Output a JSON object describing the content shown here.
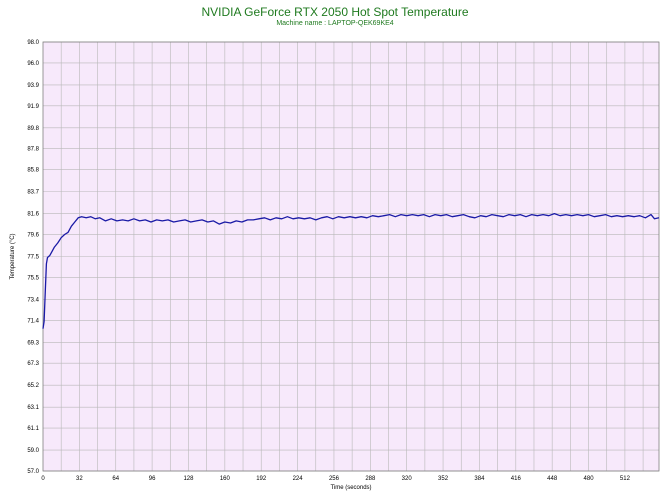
{
  "chart_data": {
    "type": "line",
    "title": "NVIDIA GeForce RTX 2050 Hot Spot Temperature",
    "subtitle": "Machine name : LAPTOP-QEK69KE4",
    "xlabel": "Time (seconds)",
    "ylabel": "Temperature (°C)",
    "xlim": [
      0,
      542
    ],
    "ylim": [
      57.0,
      98.0
    ],
    "x_ticks": [
      0,
      32,
      64,
      96,
      128,
      160,
      192,
      224,
      256,
      288,
      320,
      352,
      384,
      416,
      448,
      480,
      512
    ],
    "y_ticks": [
      57.0,
      59.0,
      61.1,
      63.1,
      65.2,
      67.3,
      69.3,
      71.4,
      73.4,
      75.5,
      77.5,
      79.6,
      81.6,
      83.7,
      85.8,
      87.8,
      89.8,
      91.9,
      93.9,
      96.0,
      98.0
    ],
    "grid": true,
    "background_color": "#f7e9fb",
    "grid_color": "#b8b8b8",
    "series": [
      {
        "color": "#1a1aa6",
        "points": [
          [
            0,
            70.6
          ],
          [
            1,
            71.3
          ],
          [
            2,
            74.2
          ],
          [
            3,
            76.8
          ],
          [
            4,
            77.4
          ],
          [
            6,
            77.6
          ],
          [
            8,
            78.0
          ],
          [
            10,
            78.4
          ],
          [
            13,
            78.8
          ],
          [
            16,
            79.3
          ],
          [
            19,
            79.6
          ],
          [
            22,
            79.8
          ],
          [
            25,
            80.4
          ],
          [
            28,
            80.8
          ],
          [
            31,
            81.2
          ],
          [
            34,
            81.3
          ],
          [
            38,
            81.2
          ],
          [
            42,
            81.3
          ],
          [
            46,
            81.1
          ],
          [
            50,
            81.2
          ],
          [
            55,
            80.9
          ],
          [
            60,
            81.1
          ],
          [
            65,
            80.9
          ],
          [
            70,
            81.0
          ],
          [
            75,
            80.9
          ],
          [
            80,
            81.1
          ],
          [
            85,
            80.9
          ],
          [
            90,
            81.0
          ],
          [
            95,
            80.8
          ],
          [
            100,
            81.0
          ],
          [
            105,
            80.9
          ],
          [
            110,
            81.0
          ],
          [
            115,
            80.8
          ],
          [
            120,
            80.9
          ],
          [
            125,
            81.0
          ],
          [
            130,
            80.8
          ],
          [
            135,
            80.9
          ],
          [
            140,
            81.0
          ],
          [
            145,
            80.8
          ],
          [
            150,
            80.9
          ],
          [
            155,
            80.6
          ],
          [
            160,
            80.8
          ],
          [
            165,
            80.7
          ],
          [
            170,
            80.9
          ],
          [
            175,
            80.8
          ],
          [
            180,
            81.0
          ],
          [
            185,
            81.0
          ],
          [
            190,
            81.1
          ],
          [
            195,
            81.2
          ],
          [
            200,
            81.0
          ],
          [
            205,
            81.2
          ],
          [
            210,
            81.1
          ],
          [
            215,
            81.3
          ],
          [
            220,
            81.1
          ],
          [
            225,
            81.2
          ],
          [
            230,
            81.1
          ],
          [
            235,
            81.2
          ],
          [
            240,
            81.0
          ],
          [
            245,
            81.2
          ],
          [
            250,
            81.3
          ],
          [
            255,
            81.1
          ],
          [
            260,
            81.3
          ],
          [
            265,
            81.2
          ],
          [
            270,
            81.3
          ],
          [
            275,
            81.2
          ],
          [
            280,
            81.3
          ],
          [
            285,
            81.2
          ],
          [
            290,
            81.4
          ],
          [
            295,
            81.3
          ],
          [
            300,
            81.4
          ],
          [
            305,
            81.5
          ],
          [
            310,
            81.3
          ],
          [
            315,
            81.5
          ],
          [
            320,
            81.4
          ],
          [
            325,
            81.5
          ],
          [
            330,
            81.4
          ],
          [
            335,
            81.5
          ],
          [
            340,
            81.3
          ],
          [
            345,
            81.5
          ],
          [
            350,
            81.4
          ],
          [
            355,
            81.5
          ],
          [
            360,
            81.3
          ],
          [
            365,
            81.4
          ],
          [
            370,
            81.5
          ],
          [
            375,
            81.3
          ],
          [
            380,
            81.2
          ],
          [
            385,
            81.4
          ],
          [
            390,
            81.3
          ],
          [
            395,
            81.5
          ],
          [
            400,
            81.4
          ],
          [
            405,
            81.3
          ],
          [
            410,
            81.5
          ],
          [
            415,
            81.4
          ],
          [
            420,
            81.5
          ],
          [
            425,
            81.3
          ],
          [
            430,
            81.5
          ],
          [
            435,
            81.4
          ],
          [
            440,
            81.5
          ],
          [
            445,
            81.4
          ],
          [
            450,
            81.6
          ],
          [
            455,
            81.4
          ],
          [
            460,
            81.5
          ],
          [
            465,
            81.4
          ],
          [
            470,
            81.5
          ],
          [
            475,
            81.4
          ],
          [
            480,
            81.5
          ],
          [
            485,
            81.3
          ],
          [
            490,
            81.4
          ],
          [
            495,
            81.5
          ],
          [
            500,
            81.3
          ],
          [
            505,
            81.4
          ],
          [
            510,
            81.3
          ],
          [
            515,
            81.4
          ],
          [
            520,
            81.3
          ],
          [
            525,
            81.4
          ],
          [
            530,
            81.2
          ],
          [
            535,
            81.5
          ],
          [
            538,
            81.1
          ],
          [
            542,
            81.2
          ]
        ]
      }
    ]
  }
}
